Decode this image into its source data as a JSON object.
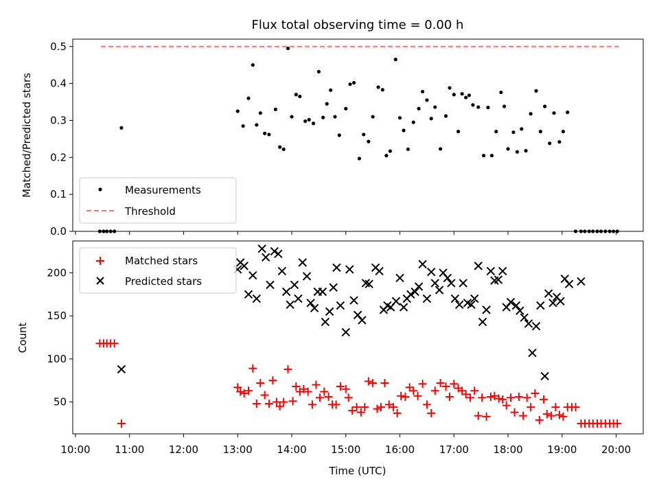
{
  "chart_data": [
    {
      "type": "scatter",
      "title": "Flux total observing time = 0.00 h",
      "xlabel": "",
      "ylabel": "Matched/Predicted stars",
      "xlim": [
        9.95,
        20.5
      ],
      "ylim": [
        0,
        0.52
      ],
      "yticks": [
        0.0,
        0.1,
        0.2,
        0.3,
        0.4,
        0.5
      ],
      "ytick_labels": [
        "0.0",
        "0.1",
        "0.2",
        "0.3",
        "0.4",
        "0.5"
      ],
      "grid": false,
      "legend": {
        "placement": "lower-left",
        "entries": [
          {
            "label": "Measurements",
            "marker": "dot",
            "color": "#000000"
          },
          {
            "label": "Threshold",
            "marker": "dashed-line",
            "color": "#ff7070"
          }
        ]
      },
      "threshold": {
        "x": [
          10.47,
          20.05
        ],
        "y": 0.5,
        "color": "#ff7070"
      },
      "series": [
        {
          "name": "Measurements",
          "color": "#000000",
          "x": [
            10.45,
            10.52,
            10.58,
            10.65,
            10.72,
            10.85,
            13.0,
            13.1,
            13.2,
            13.28,
            13.35,
            13.42,
            13.5,
            13.58,
            13.7,
            13.78,
            13.85,
            13.93,
            14.0,
            14.08,
            14.15,
            14.25,
            14.32,
            14.4,
            14.5,
            14.58,
            14.65,
            14.72,
            14.8,
            14.88,
            15.0,
            15.08,
            15.15,
            15.25,
            15.33,
            15.42,
            15.5,
            15.6,
            15.68,
            15.75,
            15.82,
            15.92,
            16.0,
            16.07,
            16.15,
            16.25,
            16.35,
            16.42,
            16.5,
            16.58,
            16.65,
            16.75,
            16.85,
            16.92,
            17.0,
            17.08,
            17.15,
            17.22,
            17.28,
            17.35,
            17.45,
            17.55,
            17.63,
            17.7,
            17.78,
            17.87,
            17.93,
            18.0,
            18.1,
            18.17,
            18.25,
            18.33,
            18.42,
            18.52,
            18.6,
            18.68,
            18.77,
            18.85,
            18.95,
            19.02,
            19.1,
            19.25,
            19.35,
            19.42,
            19.5,
            19.57,
            19.65,
            19.72,
            19.8,
            19.88,
            19.95,
            20.02
          ],
          "y": [
            0.0,
            0.0,
            0.0,
            0.0,
            0.0,
            0.28,
            0.325,
            0.285,
            0.36,
            0.45,
            0.288,
            0.32,
            0.265,
            0.262,
            0.33,
            0.228,
            0.222,
            0.495,
            0.31,
            0.37,
            0.365,
            0.298,
            0.302,
            0.292,
            0.432,
            0.308,
            0.345,
            0.382,
            0.31,
            0.26,
            0.332,
            0.398,
            0.402,
            0.197,
            0.262,
            0.243,
            0.31,
            0.39,
            0.383,
            0.205,
            0.217,
            0.465,
            0.307,
            0.273,
            0.222,
            0.295,
            0.332,
            0.378,
            0.355,
            0.305,
            0.336,
            0.223,
            0.312,
            0.388,
            0.37,
            0.27,
            0.372,
            0.362,
            0.368,
            0.342,
            0.336,
            0.205,
            0.335,
            0.205,
            0.27,
            0.376,
            0.338,
            0.223,
            0.268,
            0.215,
            0.277,
            0.218,
            0.318,
            0.38,
            0.27,
            0.338,
            0.238,
            0.32,
            0.242,
            0.27,
            0.322,
            0.0,
            0.0,
            0.0,
            0.0,
            0.0,
            0.0,
            0.0,
            0.0,
            0.0,
            0.0,
            0.0
          ]
        }
      ]
    },
    {
      "type": "scatter",
      "title": "",
      "xlabel": "Time (UTC)",
      "ylabel": "Count",
      "xlim": [
        9.95,
        20.5
      ],
      "ylim": [
        13,
        237
      ],
      "yticks": [
        50,
        100,
        150,
        200
      ],
      "ytick_labels": [
        "50",
        "100",
        "150",
        "200"
      ],
      "xticks": [
        10,
        11,
        12,
        13,
        14,
        15,
        16,
        17,
        18,
        19,
        20
      ],
      "xtick_labels": [
        "10:00",
        "11:00",
        "12:00",
        "13:00",
        "14:00",
        "15:00",
        "16:00",
        "17:00",
        "18:00",
        "19:00",
        "20:00"
      ],
      "grid": false,
      "legend": {
        "placement": "upper-left",
        "entries": [
          {
            "label": "Matched stars",
            "marker": "plus",
            "color": "#ff0000"
          },
          {
            "label": "Predicted stars",
            "marker": "x",
            "color": "#000000"
          }
        ]
      },
      "series": [
        {
          "name": "Matched stars",
          "color": "#ff0000",
          "marker": "plus",
          "x": [
            10.45,
            10.52,
            10.58,
            10.65,
            10.72,
            10.85,
            13.0,
            13.05,
            13.12,
            13.2,
            13.28,
            13.35,
            13.42,
            13.5,
            13.58,
            13.65,
            13.72,
            13.78,
            13.85,
            13.93,
            14.02,
            14.08,
            14.15,
            14.22,
            14.3,
            14.38,
            14.45,
            14.52,
            14.6,
            14.68,
            14.75,
            14.82,
            14.9,
            15.0,
            15.05,
            15.12,
            15.2,
            15.28,
            15.35,
            15.42,
            15.5,
            15.58,
            15.65,
            15.72,
            15.8,
            15.88,
            15.95,
            16.02,
            16.1,
            16.18,
            16.25,
            16.33,
            16.42,
            16.5,
            16.58,
            16.65,
            16.75,
            16.85,
            16.92,
            17.0,
            17.08,
            17.15,
            17.22,
            17.3,
            17.38,
            17.45,
            17.52,
            17.6,
            17.68,
            17.75,
            17.83,
            17.9,
            17.97,
            18.05,
            18.12,
            18.2,
            18.28,
            18.35,
            18.42,
            18.5,
            18.58,
            18.66,
            18.72,
            18.8,
            18.88,
            18.95,
            19.02,
            19.1,
            19.18,
            19.25,
            19.35,
            19.42,
            19.5,
            19.57,
            19.65,
            19.72,
            19.8,
            19.88,
            19.95,
            20.02
          ],
          "y": [
            118,
            118,
            118,
            118,
            118,
            25,
            67,
            62,
            60,
            63,
            89,
            48,
            72,
            58,
            48,
            75,
            50,
            45,
            50,
            88,
            51,
            68,
            62,
            65,
            62,
            47,
            70,
            55,
            62,
            56,
            47,
            47,
            68,
            65,
            55,
            40,
            44,
            38,
            44,
            74,
            72,
            42,
            44,
            72,
            47,
            44,
            37,
            57,
            56,
            67,
            63,
            57,
            71,
            47,
            37,
            63,
            72,
            68,
            56,
            71,
            66,
            63,
            59,
            55,
            63,
            34,
            55,
            33,
            56,
            57,
            54,
            53,
            46,
            55,
            38,
            56,
            34,
            55,
            44,
            60,
            29,
            53,
            36,
            34,
            44,
            35,
            33,
            44,
            44,
            44,
            25,
            25,
            25,
            25,
            25,
            25,
            25,
            25,
            25,
            25
          ]
        },
        {
          "name": "Predicted stars",
          "color": "#000000",
          "marker": "x",
          "x": [
            10.85,
            13.0,
            13.05,
            13.12,
            13.2,
            13.28,
            13.35,
            13.45,
            13.52,
            13.6,
            13.68,
            13.75,
            13.82,
            13.9,
            13.97,
            14.05,
            14.12,
            14.2,
            14.28,
            14.35,
            14.42,
            14.48,
            14.57,
            14.62,
            14.7,
            14.77,
            14.83,
            14.9,
            15.0,
            15.07,
            15.15,
            15.22,
            15.3,
            15.37,
            15.43,
            15.55,
            15.62,
            15.7,
            15.77,
            15.83,
            15.93,
            16.0,
            16.07,
            16.13,
            16.2,
            16.28,
            16.35,
            16.42,
            16.5,
            16.58,
            16.65,
            16.73,
            16.8,
            16.88,
            16.95,
            17.02,
            17.1,
            17.17,
            17.25,
            17.32,
            17.38,
            17.45,
            17.53,
            17.6,
            17.68,
            17.75,
            17.82,
            17.9,
            17.97,
            18.05,
            18.15,
            18.22,
            18.3,
            18.38,
            18.45,
            18.52,
            18.6,
            18.68,
            18.75,
            18.83,
            18.9,
            18.97,
            19.05,
            19.13,
            19.35
          ],
          "y": [
            88,
            204,
            212,
            208,
            175,
            197,
            170,
            228,
            218,
            186,
            225,
            222,
            202,
            178,
            163,
            186,
            170,
            212,
            196,
            165,
            159,
            178,
            178,
            143,
            155,
            183,
            206,
            162,
            131,
            204,
            168,
            151,
            145,
            188,
            187,
            206,
            202,
            157,
            162,
            160,
            167,
            194,
            160,
            170,
            175,
            178,
            184,
            210,
            170,
            201,
            188,
            180,
            200,
            194,
            188,
            170,
            163,
            188,
            165,
            163,
            170,
            208,
            143,
            157,
            202,
            191,
            192,
            202,
            160,
            166,
            162,
            156,
            148,
            141,
            107,
            138,
            162,
            80,
            176,
            165,
            172,
            167,
            193,
            187,
            190
          ]
        }
      ]
    }
  ]
}
